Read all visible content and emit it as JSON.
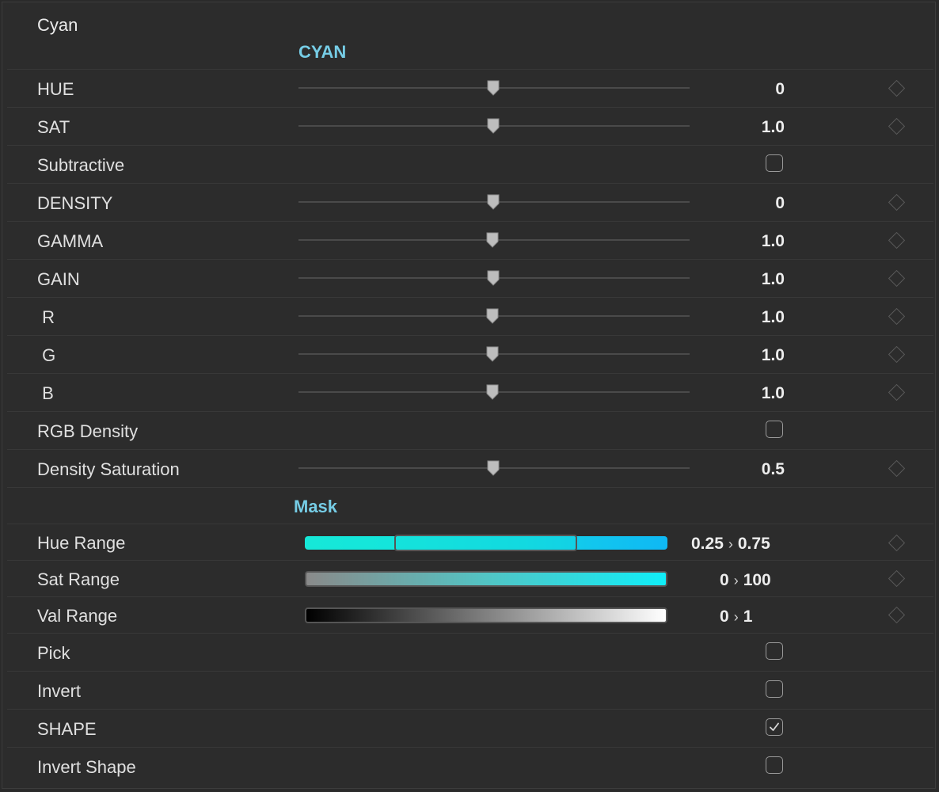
{
  "panel": {
    "title": "Cyan"
  },
  "sections": {
    "cyan_header": "CYAN",
    "mask_header": "Mask"
  },
  "rows": {
    "hue": {
      "label": "HUE",
      "value": "0",
      "level": 0.5
    },
    "sat": {
      "label": "SAT",
      "value": "1.0",
      "level": 0.5
    },
    "subtractive": {
      "label": "Subtractive",
      "checked": false
    },
    "density": {
      "label": "DENSITY",
      "value": "0",
      "level": 0.5
    },
    "gamma": {
      "label": "GAMMA",
      "value": "1.0",
      "level": 0.5
    },
    "gain": {
      "label": "GAIN",
      "value": "1.0",
      "level": 0.5
    },
    "r": {
      "label": " R",
      "value": "1.0",
      "level": 0.5
    },
    "g": {
      "label": " G",
      "value": "1.0",
      "level": 0.5
    },
    "b": {
      "label": " B",
      "value": "1.0",
      "level": 0.5
    },
    "rgb_density": {
      "label": "RGB Density",
      "checked": false
    },
    "density_saturation": {
      "label": "Density Saturation",
      "value": "0.5",
      "level": 0.5
    },
    "hue_range": {
      "label": "Hue Range",
      "low": "0.25",
      "high": "0.75",
      "arrow": "›"
    },
    "sat_range": {
      "label": "Sat Range",
      "low": "0",
      "high": "100",
      "arrow": "›"
    },
    "val_range": {
      "label": "Val Range",
      "low": "0",
      "high": "1",
      "arrow": "›"
    },
    "pick": {
      "label": "Pick",
      "checked": false
    },
    "invert": {
      "label": "Invert",
      "checked": false
    },
    "shape": {
      "label": "SHAPE",
      "checked": true
    },
    "invert_shape": {
      "label": "Invert Shape",
      "checked": false
    }
  },
  "icons": {
    "keyframe": "keyframe-diamond-icon",
    "thumb": "slider-thumb-icon",
    "check": "checkmark-icon"
  },
  "colors": {
    "accent_header": "#76cde6",
    "cyan": "#12e4e0",
    "panel_bg": "#2c2c2c"
  }
}
